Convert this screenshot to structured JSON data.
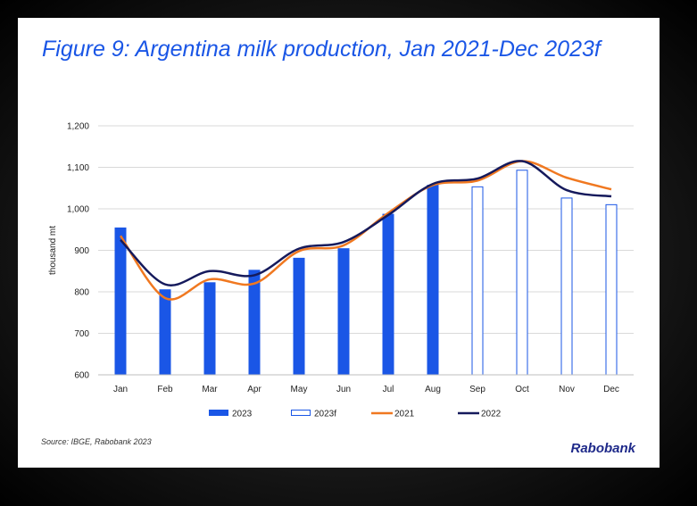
{
  "title": "Figure 9: Argentina milk production, Jan 2021-Dec 2023f",
  "source": "Source: IBGE, Rabobank 2023",
  "brand": "Rabobank",
  "colors": {
    "bar_2023": "#1a56e6",
    "line_2021": "#f07820",
    "line_2022": "#151a5c",
    "title": "#1a56e6"
  },
  "chart_data": {
    "type": "bar",
    "title": "Figure 9: Argentina milk production, Jan 2021-Dec 2023f",
    "xlabel": "",
    "ylabel": "thousand mt",
    "ylim": [
      600,
      1200
    ],
    "yticks": [
      600,
      700,
      800,
      900,
      1000,
      1100,
      1200
    ],
    "ytick_labels": [
      "600",
      "700",
      "800",
      "900",
      "1,000",
      "1,100",
      "1,200"
    ],
    "categories": [
      "Jan",
      "Feb",
      "Mar",
      "Apr",
      "May",
      "Jun",
      "Jul",
      "Aug",
      "Sep",
      "Oct",
      "Nov",
      "Dec"
    ],
    "series": [
      {
        "name": "2023",
        "type": "bar",
        "values": [
          955,
          806,
          823,
          853,
          882,
          905,
          988,
          1058,
          null,
          null,
          null,
          null
        ]
      },
      {
        "name": "2023f",
        "type": "bar-outline",
        "values": [
          null,
          null,
          null,
          null,
          null,
          null,
          null,
          null,
          1053,
          1093,
          1026,
          1010
        ]
      },
      {
        "name": "2021",
        "type": "line",
        "values": [
          935,
          785,
          830,
          820,
          898,
          912,
          990,
          1057,
          1068,
          1115,
          1075,
          1047
        ]
      },
      {
        "name": "2022",
        "type": "line",
        "values": [
          925,
          818,
          850,
          840,
          904,
          920,
          985,
          1060,
          1073,
          1115,
          1045,
          1030
        ]
      }
    ],
    "legend": [
      "2023",
      "2023f",
      "2021",
      "2022"
    ],
    "legend_position": "bottom"
  }
}
